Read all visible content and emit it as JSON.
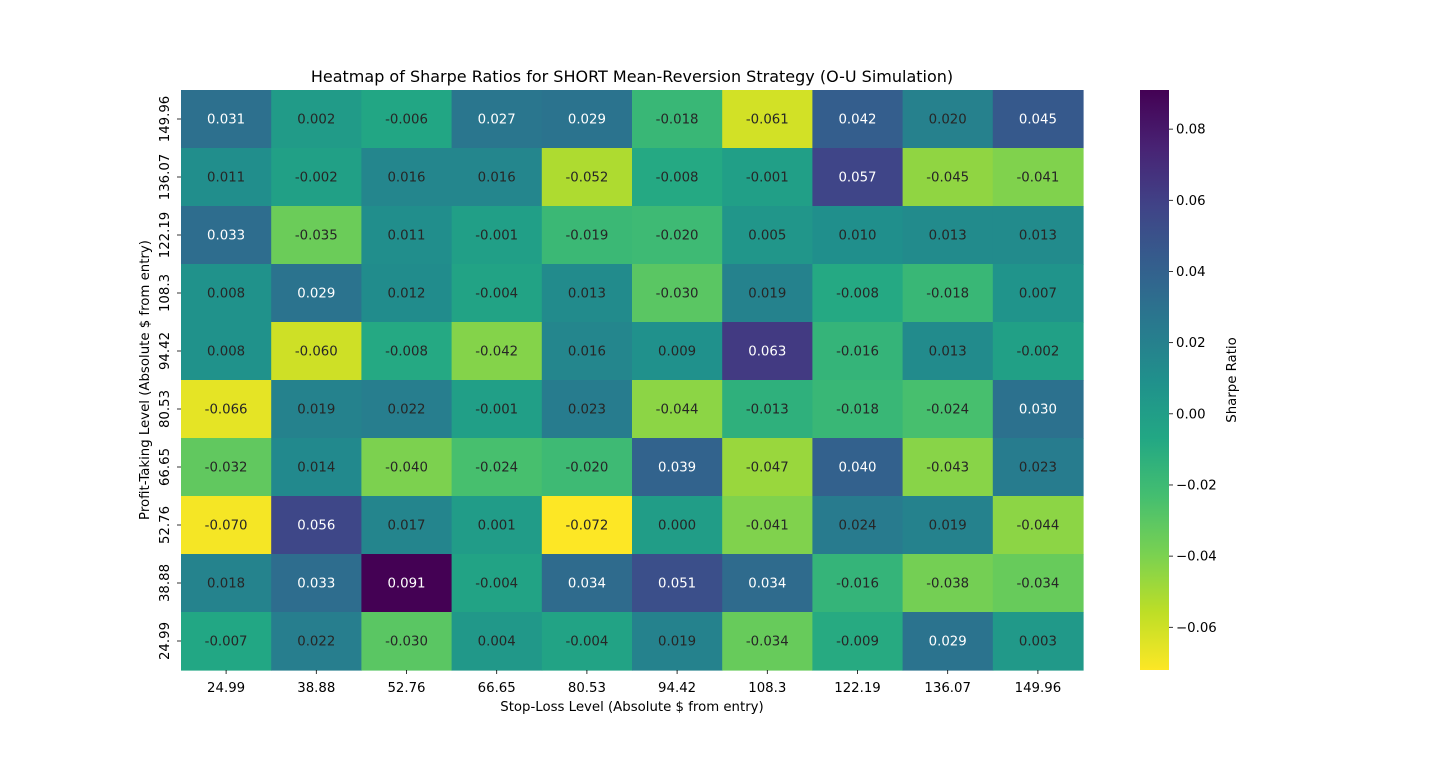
{
  "chart_data": {
    "type": "heatmap",
    "title": "Heatmap of Sharpe Ratios for SHORT Mean-Reversion Strategy (O-U Simulation)",
    "xlabel": "Stop-Loss Level (Absolute $ from entry)",
    "ylabel": "Profit-Taking Level (Absolute $ from entry)",
    "x_categories": [
      "24.99",
      "38.88",
      "52.76",
      "66.65",
      "80.53",
      "94.42",
      "108.3",
      "122.19",
      "136.07",
      "149.96"
    ],
    "y_categories": [
      "149.96",
      "136.07",
      "122.19",
      "108.3",
      "94.42",
      "80.53",
      "66.65",
      "52.76",
      "38.88",
      "24.99"
    ],
    "values": [
      [
        0.031,
        0.002,
        -0.006,
        0.027,
        0.029,
        -0.018,
        -0.061,
        0.042,
        0.02,
        0.045
      ],
      [
        0.011,
        -0.002,
        0.016,
        0.016,
        -0.052,
        -0.008,
        -0.001,
        0.057,
        -0.045,
        -0.041
      ],
      [
        0.033,
        -0.035,
        0.011,
        -0.001,
        -0.019,
        -0.02,
        0.005,
        0.01,
        0.013,
        0.013
      ],
      [
        0.008,
        0.029,
        0.012,
        -0.004,
        0.013,
        -0.03,
        0.019,
        -0.008,
        -0.018,
        0.007
      ],
      [
        0.008,
        -0.06,
        -0.008,
        -0.042,
        0.016,
        0.009,
        0.063,
        -0.016,
        0.013,
        -0.002
      ],
      [
        -0.066,
        0.019,
        0.022,
        -0.001,
        0.023,
        -0.044,
        -0.013,
        -0.018,
        -0.024,
        0.03
      ],
      [
        -0.032,
        0.014,
        -0.04,
        -0.024,
        -0.02,
        0.039,
        -0.047,
        0.04,
        -0.043,
        0.023
      ],
      [
        -0.07,
        0.056,
        0.017,
        0.001,
        -0.072,
        0.0,
        -0.041,
        0.024,
        0.019,
        -0.044
      ],
      [
        0.018,
        0.033,
        0.091,
        -0.004,
        0.034,
        0.051,
        0.034,
        -0.016,
        -0.038,
        -0.034
      ],
      [
        -0.007,
        0.022,
        -0.03,
        0.004,
        -0.004,
        0.019,
        -0.034,
        -0.009,
        0.029,
        0.003
      ]
    ],
    "value_format": "0.000",
    "colormap": "viridis_r",
    "vmin": -0.072,
    "vmax": 0.091,
    "colorbar": {
      "label": "Sharpe Ratio",
      "ticks": [
        -0.06,
        -0.04,
        -0.02,
        0.0,
        0.02,
        0.04,
        0.06,
        0.08
      ],
      "tick_labels": [
        "−0.06",
        "−0.04",
        "−0.02",
        "0.00",
        "0.02",
        "0.04",
        "0.06",
        "0.08"
      ]
    },
    "grid": false,
    "legend": "colorbar-right"
  }
}
